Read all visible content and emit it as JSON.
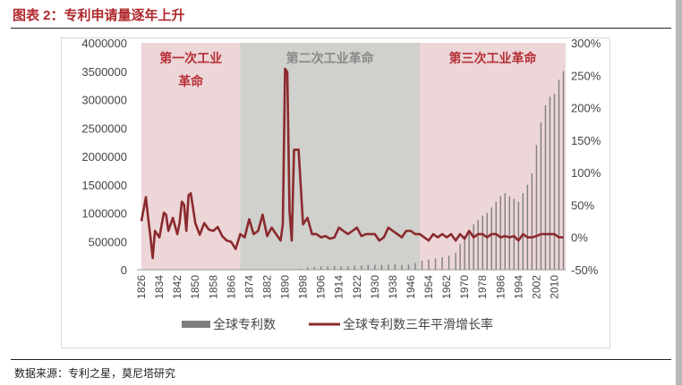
{
  "figure": {
    "title": "图表 2：专利申请量逐年上升",
    "source": "数据来源：专利之星，莫尼塔研究"
  },
  "colors": {
    "title": "#b0282d",
    "bar": "#7f7f7f",
    "line": "#8b2a2e",
    "era1_bg": "#ecd6d8",
    "era2_bg": "#d0d0cc",
    "era3_bg": "#ecd6d8",
    "era_label_red": "#b52f36",
    "era_label_gray": "#8a8a8a"
  },
  "chart_data": {
    "type": "bar",
    "x_tick_labels": [
      "1826",
      "1834",
      "1842",
      "1850",
      "1858",
      "1866",
      "1874",
      "1882",
      "1890",
      "1898",
      "1906",
      "1914",
      "1922",
      "1930",
      "1938",
      "1946",
      "1954",
      "1962",
      "1970",
      "1978",
      "1986",
      "1994",
      "2002",
      "2010"
    ],
    "y_left": {
      "ticks": [
        "4000000",
        "3500000",
        "3000000",
        "2500000",
        "2000000",
        "1500000",
        "1000000",
        "500000",
        "0"
      ],
      "range": [
        0,
        4000000
      ]
    },
    "y_right": {
      "ticks": [
        "300%",
        "250%",
        "200%",
        "150%",
        "100%",
        "50%",
        "0%",
        "-50%"
      ],
      "range": [
        -0.5,
        3.0
      ]
    },
    "eras": [
      {
        "label_line1": "第一次工业",
        "label_line2": "革命",
        "start": 1826,
        "end": 1870,
        "color": "red"
      },
      {
        "label_line1": "第二次工业革命",
        "label_line2": "",
        "start": 1870,
        "end": 1950,
        "color": "gray"
      },
      {
        "label_line1": "第三次工业革命",
        "label_line2": "",
        "start": 1950,
        "end": 2015,
        "color": "red"
      }
    ],
    "legend": [
      "全球专利数",
      "全球专利数三年平滑增长率"
    ],
    "series": [
      {
        "name": "全球专利数",
        "kind": "bar",
        "axis": "left",
        "x": [
          1897,
          1900,
          1903,
          1906,
          1909,
          1912,
          1915,
          1918,
          1921,
          1924,
          1927,
          1930,
          1933,
          1936,
          1939,
          1942,
          1945,
          1948,
          1951,
          1954,
          1957,
          1960,
          1963,
          1966,
          1968,
          1970,
          1972,
          1974,
          1976,
          1978,
          1980,
          1982,
          1984,
          1986,
          1988,
          1990,
          1992,
          1994,
          1996,
          1998,
          2000,
          2002,
          2004,
          2006,
          2008,
          2010,
          2012,
          2014
        ],
        "values": [
          20000,
          40000,
          50000,
          60000,
          60000,
          65000,
          60000,
          60000,
          70000,
          75000,
          85000,
          90000,
          85000,
          90000,
          95000,
          85000,
          90000,
          120000,
          160000,
          180000,
          200000,
          220000,
          250000,
          300000,
          450000,
          600000,
          700000,
          800000,
          880000,
          950000,
          1000000,
          1100000,
          1200000,
          1300000,
          1350000,
          1300000,
          1250000,
          1200000,
          1350000,
          1500000,
          1700000,
          2200000,
          2600000,
          2900000,
          3050000,
          3100000,
          3350000,
          3500000
        ]
      },
      {
        "name": "全球专利数三年平滑增长率",
        "kind": "line",
        "axis": "right",
        "x": [
          1826,
          1828,
          1829,
          1830,
          1831,
          1832,
          1833,
          1834,
          1836,
          1837,
          1838,
          1840,
          1842,
          1843,
          1844,
          1845,
          1846,
          1847,
          1848,
          1850,
          1852,
          1854,
          1856,
          1858,
          1860,
          1862,
          1864,
          1866,
          1868,
          1870,
          1872,
          1874,
          1876,
          1878,
          1880,
          1882,
          1884,
          1886,
          1888,
          1889,
          1890,
          1891,
          1892,
          1893,
          1894,
          1896,
          1898,
          1900,
          1902,
          1904,
          1906,
          1908,
          1910,
          1912,
          1914,
          1916,
          1918,
          1920,
          1922,
          1924,
          1926,
          1928,
          1930,
          1932,
          1934,
          1936,
          1938,
          1940,
          1942,
          1944,
          1946,
          1948,
          1950,
          1952,
          1954,
          1956,
          1958,
          1960,
          1962,
          1964,
          1966,
          1968,
          1970,
          1972,
          1974,
          1976,
          1978,
          1980,
          1982,
          1984,
          1986,
          1988,
          1990,
          1992,
          1994,
          1996,
          1998,
          2000,
          2002,
          2004,
          2006,
          2008,
          2010,
          2012,
          2014
        ],
        "values": [
          0.25,
          0.62,
          0.3,
          0.02,
          -0.32,
          0.1,
          0.05,
          0.0,
          0.38,
          0.35,
          0.1,
          0.3,
          0.05,
          0.22,
          0.55,
          0.5,
          0.1,
          0.65,
          0.68,
          0.22,
          0.04,
          0.22,
          0.12,
          0.1,
          0.16,
          0.02,
          -0.05,
          -0.07,
          -0.18,
          0.05,
          0.0,
          0.28,
          0.05,
          0.1,
          0.35,
          0.02,
          0.15,
          0.05,
          -0.05,
          0.2,
          2.6,
          2.55,
          0.4,
          -0.05,
          1.35,
          1.35,
          0.2,
          0.3,
          0.05,
          0.05,
          0.0,
          0.02,
          -0.02,
          0.0,
          0.15,
          0.1,
          0.05,
          0.1,
          0.15,
          0.02,
          0.05,
          0.05,
          0.05,
          -0.05,
          0.0,
          0.15,
          0.1,
          0.05,
          0.0,
          0.1,
          0.1,
          0.05,
          0.05,
          0.0,
          -0.05,
          0.05,
          0.0,
          0.05,
          0.0,
          0.05,
          -0.05,
          0.05,
          -0.02,
          0.1,
          0.0,
          0.05,
          0.05,
          0.0,
          0.05,
          0.05,
          0.0,
          0.02,
          0.0,
          0.02,
          -0.05,
          0.05,
          0.0,
          0.0,
          0.02,
          0.05,
          0.05,
          0.05,
          0.05,
          0.0,
          0.0
        ]
      }
    ]
  }
}
